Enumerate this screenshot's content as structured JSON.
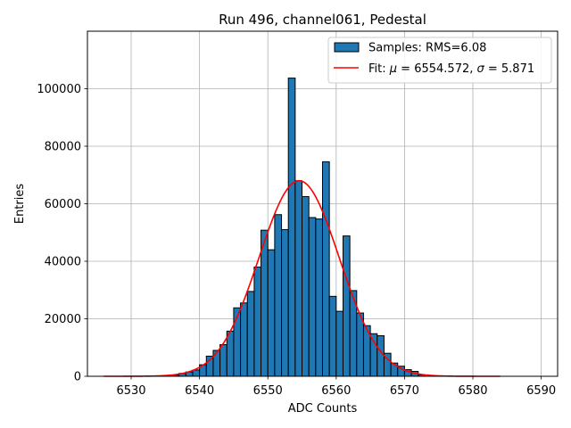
{
  "chart_data": {
    "type": "bar",
    "title": "Run 496, channel061, Pedestal",
    "xlabel": "ADC Counts",
    "ylabel": "Entries",
    "xlim": [
      6523.6,
      6592.4
    ],
    "ylim": [
      0,
      120000
    ],
    "xticks": [
      6530,
      6540,
      6550,
      6560,
      6570,
      6580,
      6590
    ],
    "yticks": [
      0,
      20000,
      40000,
      60000,
      80000,
      100000
    ],
    "grid": true,
    "legend_position": "top-right",
    "histogram": {
      "name": "Samples: RMS=6.08",
      "color": "#1f77b4",
      "edgecolor": "#000000",
      "bin_width": 1,
      "bin_left_edges": [
        6536,
        6537,
        6538,
        6539,
        6540,
        6541,
        6542,
        6543,
        6544,
        6545,
        6546,
        6547,
        6548,
        6549,
        6550,
        6551,
        6552,
        6553,
        6554,
        6555,
        6556,
        6557,
        6558,
        6559,
        6560,
        6561,
        6562,
        6563,
        6564,
        6565,
        6566,
        6567,
        6568,
        6569,
        6570,
        6571,
        6572
      ],
      "counts": [
        400,
        1000,
        1500,
        2200,
        4000,
        7000,
        9000,
        11000,
        15700,
        23800,
        25500,
        29500,
        38000,
        50800,
        44000,
        56200,
        51000,
        103700,
        68000,
        62500,
        55200,
        54700,
        74600,
        27800,
        22600,
        48800,
        29800,
        22000,
        17600,
        14800,
        14100,
        8000,
        4600,
        3500,
        2300,
        1700,
        500
      ]
    },
    "fit": {
      "name": "Fit: μ = 6554.572, σ = 5.871",
      "legend_mu_symbol": "μ",
      "legend_sigma_symbol": "σ",
      "legend_prefix": "Fit: ",
      "legend_mu_value": " = 6554.572, ",
      "legend_sigma_value": " = 5.871",
      "color": "#ff0000",
      "mu": 6554.572,
      "sigma": 5.871,
      "amplitude": 68000,
      "x_range": [
        6526,
        6584
      ]
    }
  }
}
